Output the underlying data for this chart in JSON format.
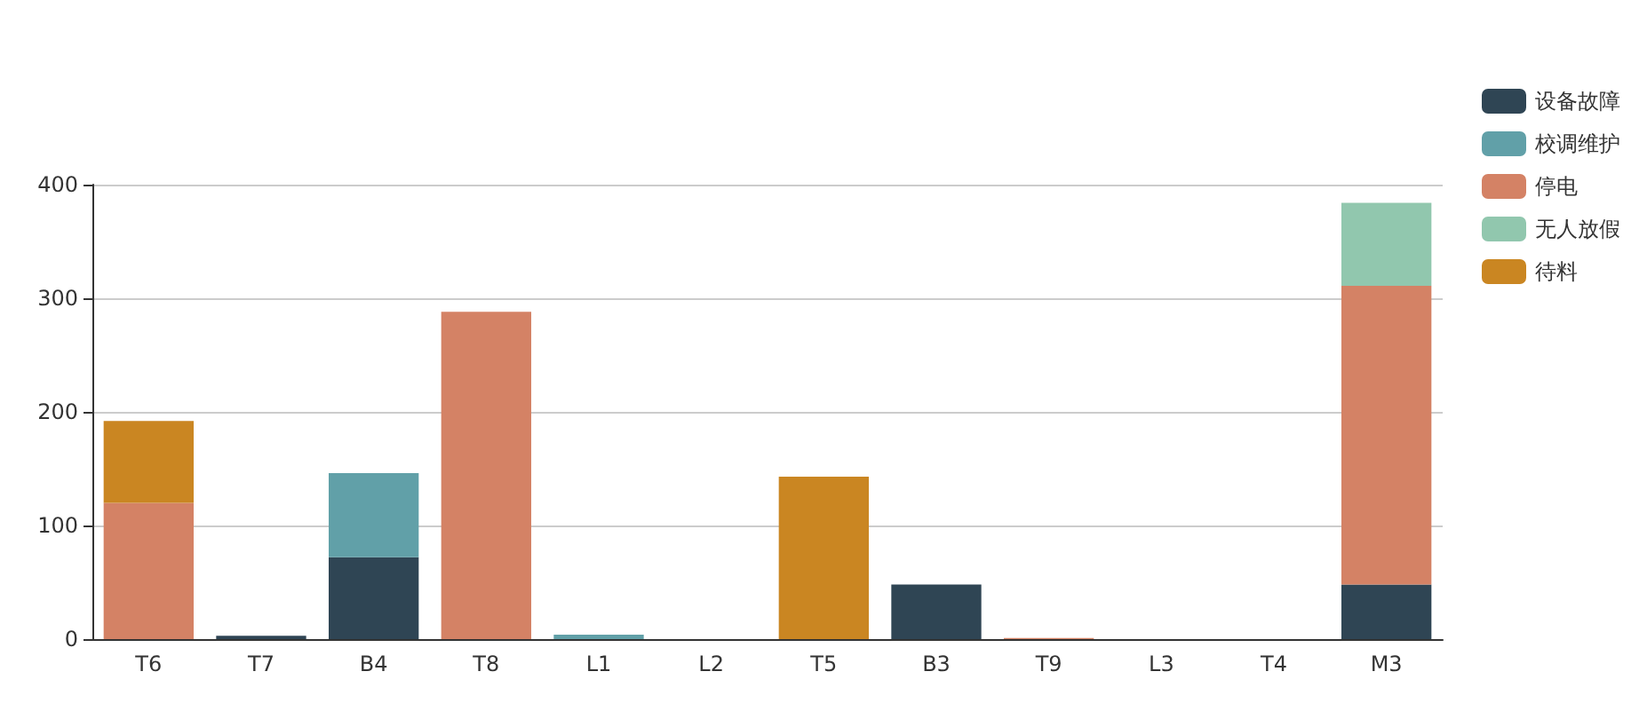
{
  "chart_data": {
    "type": "bar",
    "stacked": true,
    "categories": [
      "T6",
      "T7",
      "B4",
      "T8",
      "L1",
      "L2",
      "T5",
      "B3",
      "T9",
      "L3",
      "T4",
      "M3"
    ],
    "series": [
      {
        "name": "设备故障",
        "color": "#2f4554",
        "values": [
          null,
          3,
          72,
          null,
          null,
          null,
          null,
          48,
          null,
          null,
          null,
          48
        ]
      },
      {
        "name": "校调维护",
        "color": "#61a0a8",
        "values": [
          null,
          null,
          74,
          null,
          4,
          null,
          null,
          null,
          null,
          null,
          null,
          null
        ]
      },
      {
        "name": "停电",
        "color": "#d48265",
        "values": [
          120,
          null,
          null,
          288,
          null,
          null,
          null,
          null,
          1,
          null,
          null,
          263
        ]
      },
      {
        "name": "无人放假",
        "color": "#91c7ae",
        "values": [
          null,
          null,
          null,
          null,
          null,
          null,
          null,
          null,
          null,
          null,
          null,
          73
        ]
      },
      {
        "name": "待料",
        "color": "#ca8622",
        "values": [
          72,
          null,
          null,
          null,
          null,
          null,
          143,
          null,
          null,
          null,
          null,
          null
        ]
      }
    ],
    "ylim": [
      0,
      400
    ],
    "yticks": [
      0,
      100,
      200,
      300,
      400
    ],
    "grid": "y",
    "legend": "top right"
  }
}
